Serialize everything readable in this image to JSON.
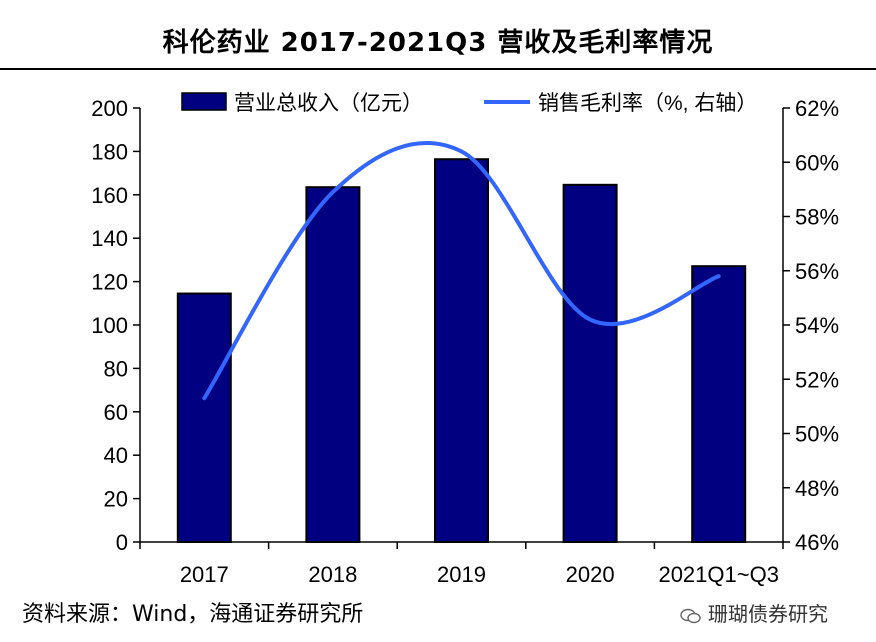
{
  "title": "科伦药业 2017-2021Q3 营收及毛利率情况",
  "source": "资料来源：Wind，海通证券研究所",
  "brand": "珊瑚债券研究",
  "chart_data": {
    "type": "bar",
    "categories": [
      "2017",
      "2018",
      "2019",
      "2020",
      "2021Q1~Q3"
    ],
    "series": [
      {
        "name": "营业总收入（亿元）",
        "type": "bar",
        "axis": "left",
        "values": [
          114.5,
          163.5,
          176.4,
          164.6,
          127.1
        ],
        "color": "#000080"
      },
      {
        "name": "销售毛利率（%, 右轴）",
        "type": "line",
        "axis": "right",
        "values": [
          51.3,
          58.9,
          60.4,
          54.2,
          55.8
        ],
        "color": "#3366ff"
      }
    ],
    "y_left": {
      "range": [
        0,
        200
      ],
      "ticks": [
        "0",
        "20",
        "40",
        "60",
        "80",
        "100",
        "120",
        "140",
        "160",
        "180",
        "200"
      ]
    },
    "y_right": {
      "range": [
        46,
        62
      ],
      "ticks": [
        "46%",
        "48%",
        "50%",
        "52%",
        "54%",
        "56%",
        "58%",
        "60%",
        "62%"
      ]
    },
    "legend_position": "top",
    "grid": false
  }
}
